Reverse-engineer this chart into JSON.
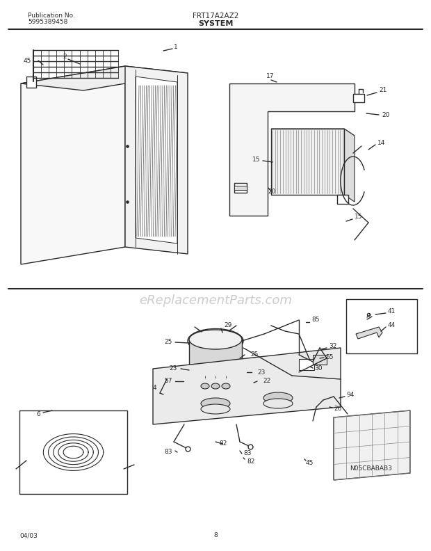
{
  "title_model": "FRT17A2AZ2",
  "title_section": "SYSTEM",
  "pub_no_label": "Publication No.",
  "pub_no": "5995389458",
  "date": "04/03",
  "page": "8",
  "watermark": "eReplacementParts.com",
  "diagram_code": "N05CBABAB3",
  "bg_color": "#ffffff",
  "line_color": "#2a2a2a",
  "text_color": "#2a2a2a",
  "watermark_color": "#d0d0d0"
}
